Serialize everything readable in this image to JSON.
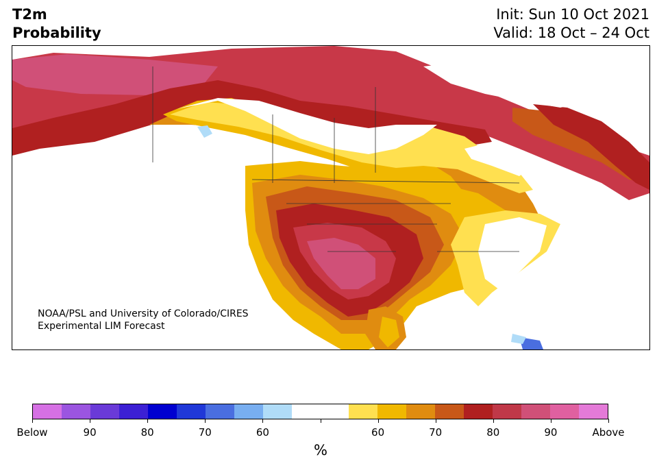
{
  "header": {
    "variable": "T2m",
    "product": "Probability",
    "init": "Init: Sun 10 Oct 2021",
    "valid": "Valid: 18 Oct – 24 Oct"
  },
  "credit": {
    "line1": "NOAA/PSL and University of Colorado/CIRES",
    "line2": "Experimental LIM Forecast"
  },
  "colorbar": {
    "unit": "%",
    "colors": [
      "#d670e4",
      "#9b55e0",
      "#6a3ad8",
      "#3c20d4",
      "#0000d0",
      "#2038d8",
      "#4a6ee0",
      "#78aef0",
      "#b0dcf8",
      "#ffffff",
      "#ffffff",
      "#ffe050",
      "#f0b800",
      "#e08c10",
      "#c85818",
      "#b02020",
      "#c03848",
      "#d05078",
      "#e060a0",
      "#e47ad8"
    ],
    "tick_labels": [
      "Below",
      "90",
      "80",
      "70",
      "60",
      "",
      "60",
      "70",
      "80",
      "90",
      "Above"
    ]
  }
}
